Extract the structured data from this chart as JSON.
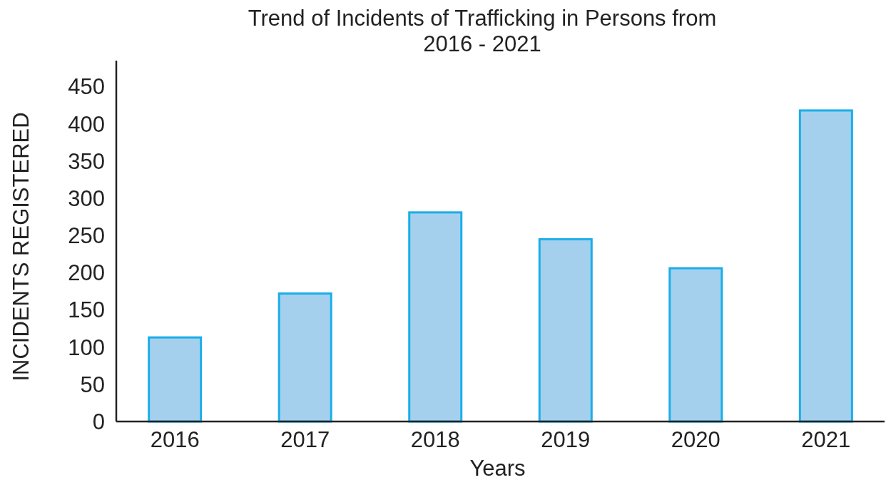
{
  "chart_data": {
    "type": "bar",
    "title": "Trend of Incidents of Trafficking in Persons from\n2016 - 2021",
    "xlabel": "Years",
    "ylabel": "INCIDENTS REGISTERED",
    "categories": [
      "2016",
      "2017",
      "2018",
      "2019",
      "2020",
      "2021"
    ],
    "values": [
      113,
      172,
      281,
      245,
      206,
      418
    ],
    "color": "#a4d0ee",
    "ylim": [
      0,
      485
    ],
    "yticks": [
      0,
      50,
      100,
      150,
      200,
      250,
      300,
      350,
      400,
      450
    ],
    "grid": false
  }
}
